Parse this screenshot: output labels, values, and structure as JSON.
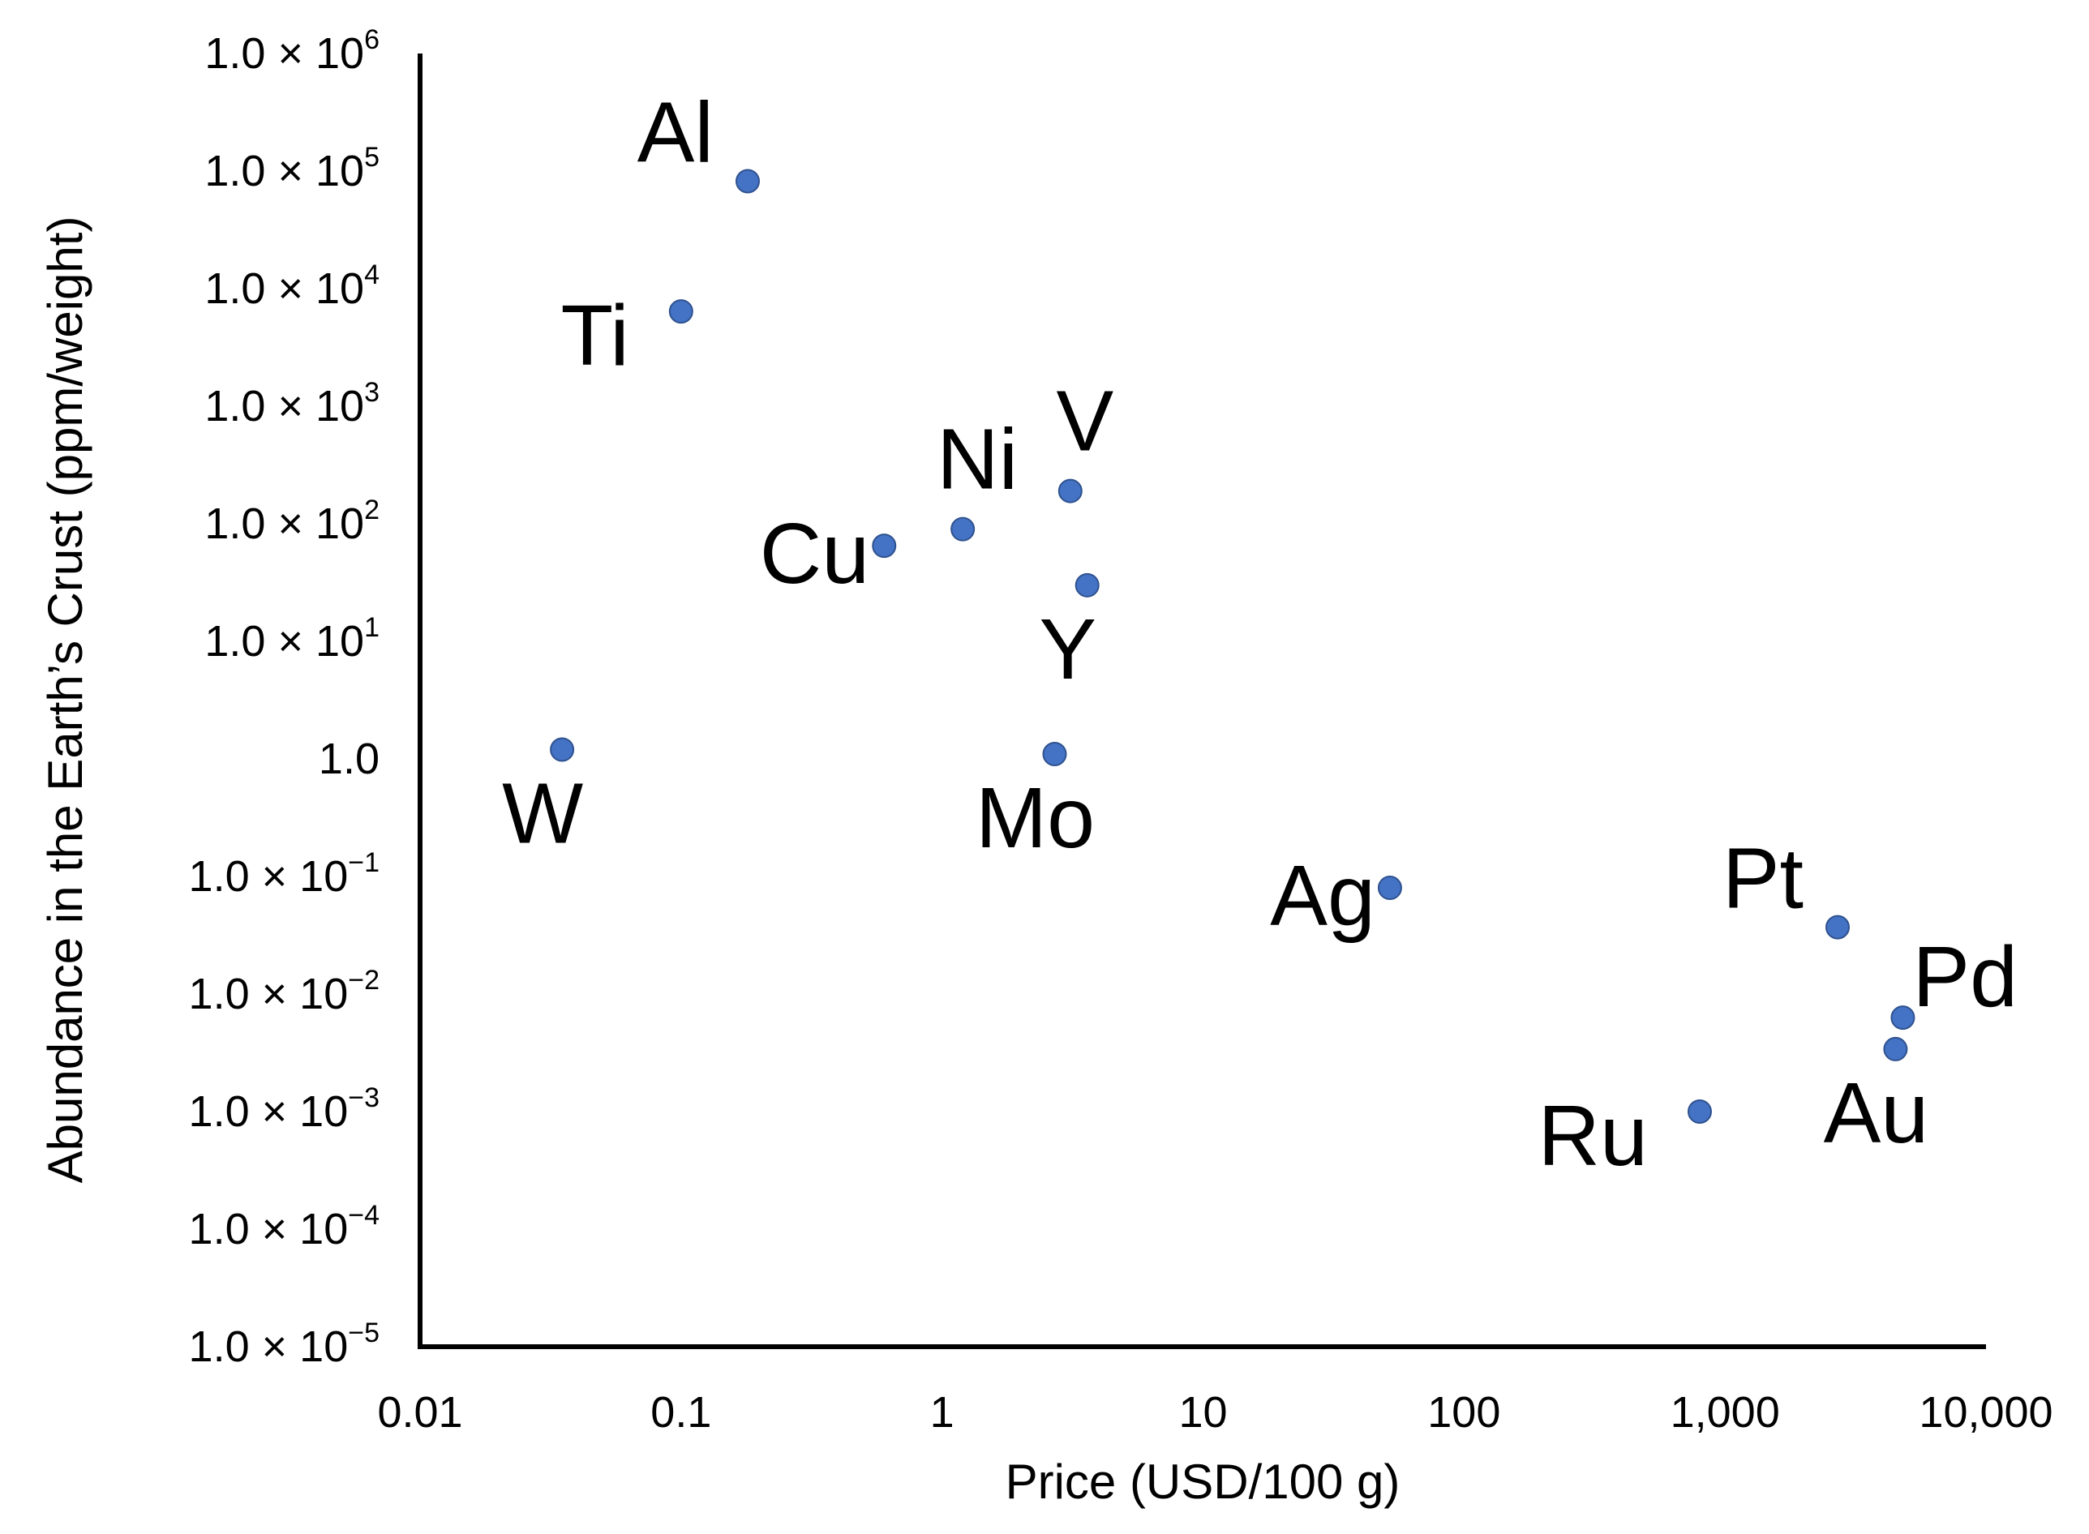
{
  "chart_data": {
    "type": "scatter",
    "title": "",
    "xlabel": "Price (USD/100 g)",
    "ylabel": "Abundance in the Earth’s Crust (ppm/weight)",
    "x_scale": "log",
    "y_scale": "log",
    "xlim": [
      0.01,
      10000
    ],
    "ylim": [
      1e-05,
      1000000
    ],
    "grid": false,
    "legend": "none",
    "x_ticks": [
      {
        "value": 0.01,
        "label": "0.01"
      },
      {
        "value": 0.1,
        "label": "0.1"
      },
      {
        "value": 1,
        "label": "1"
      },
      {
        "value": 10,
        "label": "10"
      },
      {
        "value": 100,
        "label": "100"
      },
      {
        "value": 1000,
        "label": "1,000"
      },
      {
        "value": 10000,
        "label": "10,000"
      }
    ],
    "y_ticks": [
      {
        "value": 1000000,
        "mantissa": "1.0 × 10",
        "exp": "6"
      },
      {
        "value": 100000,
        "mantissa": "1.0 × 10",
        "exp": "5"
      },
      {
        "value": 10000,
        "mantissa": "1.0 × 10",
        "exp": "4"
      },
      {
        "value": 1000,
        "mantissa": "1.0 × 10",
        "exp": "3"
      },
      {
        "value": 100,
        "mantissa": "1.0 × 10",
        "exp": "2"
      },
      {
        "value": 10,
        "mantissa": "1.0 × 10",
        "exp": "1"
      },
      {
        "value": 1,
        "mantissa": "1.0",
        "exp": ""
      },
      {
        "value": 0.1,
        "mantissa": "1.0 × 10",
        "exp": "−1"
      },
      {
        "value": 0.01,
        "mantissa": "1.0 × 10",
        "exp": "−2"
      },
      {
        "value": 0.001,
        "mantissa": "1.0 × 10",
        "exp": "−3"
      },
      {
        "value": 0.0001,
        "mantissa": "1.0 × 10",
        "exp": "−4"
      },
      {
        "value": 1e-05,
        "mantissa": "1.0 × 10",
        "exp": "−5"
      }
    ],
    "marker_color": "#4472C4",
    "marker_edge_color": "#2F528F",
    "points": [
      {
        "label": "Al",
        "x": 0.18,
        "y": 82000,
        "label_pos": "upper-left"
      },
      {
        "label": "Ti",
        "x": 0.1,
        "y": 6400,
        "label_pos": "lower-left"
      },
      {
        "label": "Ni",
        "x": 1.2,
        "y": 90,
        "label_pos": "above"
      },
      {
        "label": "V",
        "x": 3.1,
        "y": 190,
        "label_pos": "above"
      },
      {
        "label": "Cu",
        "x": 0.6,
        "y": 65,
        "label_pos": "left"
      },
      {
        "label": "Y",
        "x": 3.6,
        "y": 30,
        "label_pos": "below"
      },
      {
        "label": "W",
        "x": 0.035,
        "y": 1.2,
        "label_pos": "below"
      },
      {
        "label": "Mo",
        "x": 2.7,
        "y": 1.1,
        "label_pos": "below"
      },
      {
        "label": "Ag",
        "x": 52,
        "y": 0.08,
        "label_pos": "left"
      },
      {
        "label": "Pt",
        "x": 2700,
        "y": 0.037,
        "label_pos": "upper-left"
      },
      {
        "label": "Pd",
        "x": 4800,
        "y": 0.0063,
        "label_pos": "upper-right"
      },
      {
        "label": "Au",
        "x": 4500,
        "y": 0.0034,
        "label_pos": "below"
      },
      {
        "label": "Ru",
        "x": 800,
        "y": 0.001,
        "label_pos": "lower-left"
      }
    ]
  }
}
